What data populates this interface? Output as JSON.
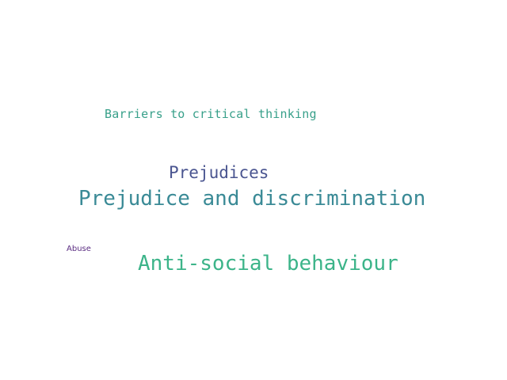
{
  "word_cloud": {
    "words": [
      {
        "text": "Barriers to critical thinking",
        "color": "#38a08a"
      },
      {
        "text": "Prejudices",
        "color": "#4a5590"
      },
      {
        "text": "Prejudice and discrimination",
        "color": "#3a8a96"
      },
      {
        "text": "Abuse",
        "color": "#5b2d82"
      },
      {
        "text": "Anti-social behaviour",
        "color": "#3cb489"
      }
    ]
  }
}
